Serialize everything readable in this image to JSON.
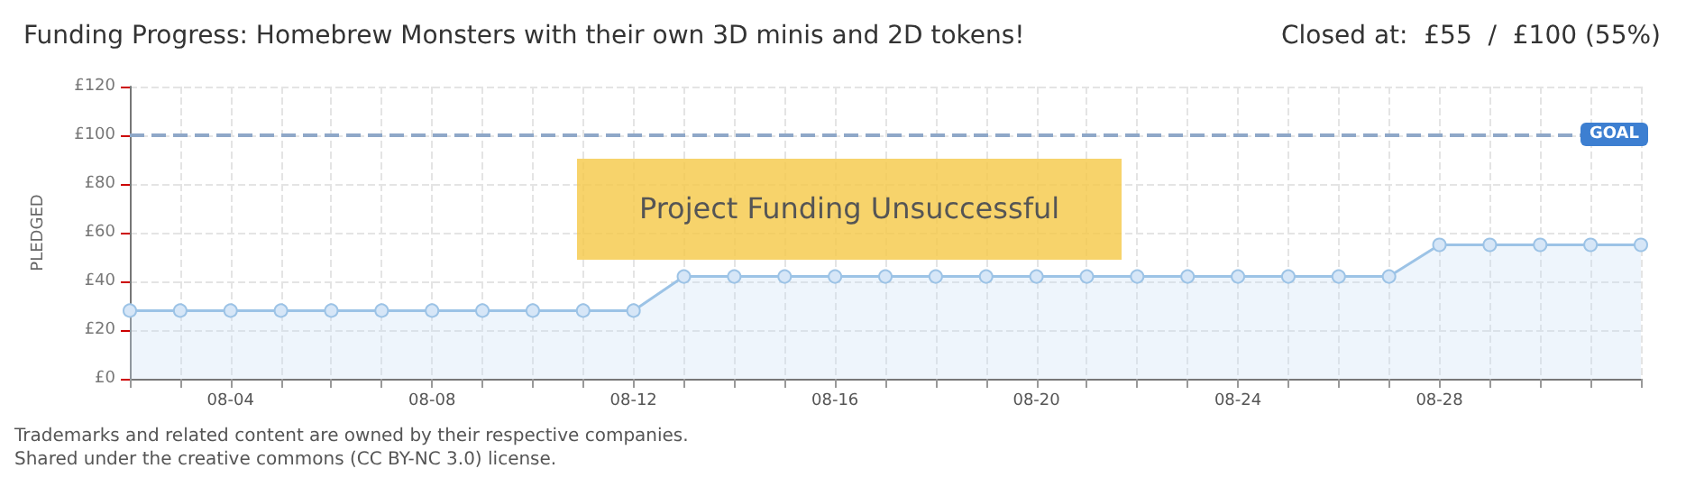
{
  "chart_data": {
    "type": "area",
    "title": "Funding Progress: Homebrew Monsters with their own 3D minis and 2D tokens!",
    "subtitle": "Closed at:  £55  /  £100 (55%)",
    "ylabel": "PLEDGED",
    "categories": [
      null,
      null,
      "08-04",
      null,
      null,
      null,
      "08-08",
      null,
      null,
      null,
      "08-12",
      null,
      null,
      null,
      "08-16",
      null,
      null,
      null,
      "08-20",
      null,
      null,
      null,
      "08-24",
      null,
      null,
      null,
      "08-28",
      null,
      null,
      null,
      null
    ],
    "series": [
      {
        "color": "#9cc3e6",
        "values": [
          28,
          28,
          28,
          28,
          28,
          28,
          28,
          28,
          28,
          28,
          28,
          42,
          42,
          42,
          42,
          42,
          42,
          42,
          42,
          42,
          42,
          42,
          42,
          42,
          42,
          42,
          55,
          55,
          55,
          55,
          55
        ]
      }
    ],
    "ylim": [
      0,
      120
    ],
    "yticks": [
      {
        "value": 0,
        "label": "£0"
      },
      {
        "value": 20,
        "label": "£20"
      },
      {
        "value": 40,
        "label": "£40"
      },
      {
        "value": 60,
        "label": "£60"
      },
      {
        "value": 80,
        "label": "£80"
      },
      {
        "value": 100,
        "label": "£100"
      },
      {
        "value": 120,
        "label": "£120"
      }
    ],
    "ref_lines": [
      {
        "axis": "y",
        "value": 100,
        "label": "GOAL",
        "color": "#8fa8c8",
        "line_style": "dashed"
      }
    ],
    "annotations": [
      "Project Funding Unsuccessful",
      "Trademarks and related content are owned by their respective companies.",
      "Shared under the creative commons (CC BY-NC 3.0) license."
    ],
    "grid": true,
    "marker": "circle",
    "line_style": "solid"
  }
}
